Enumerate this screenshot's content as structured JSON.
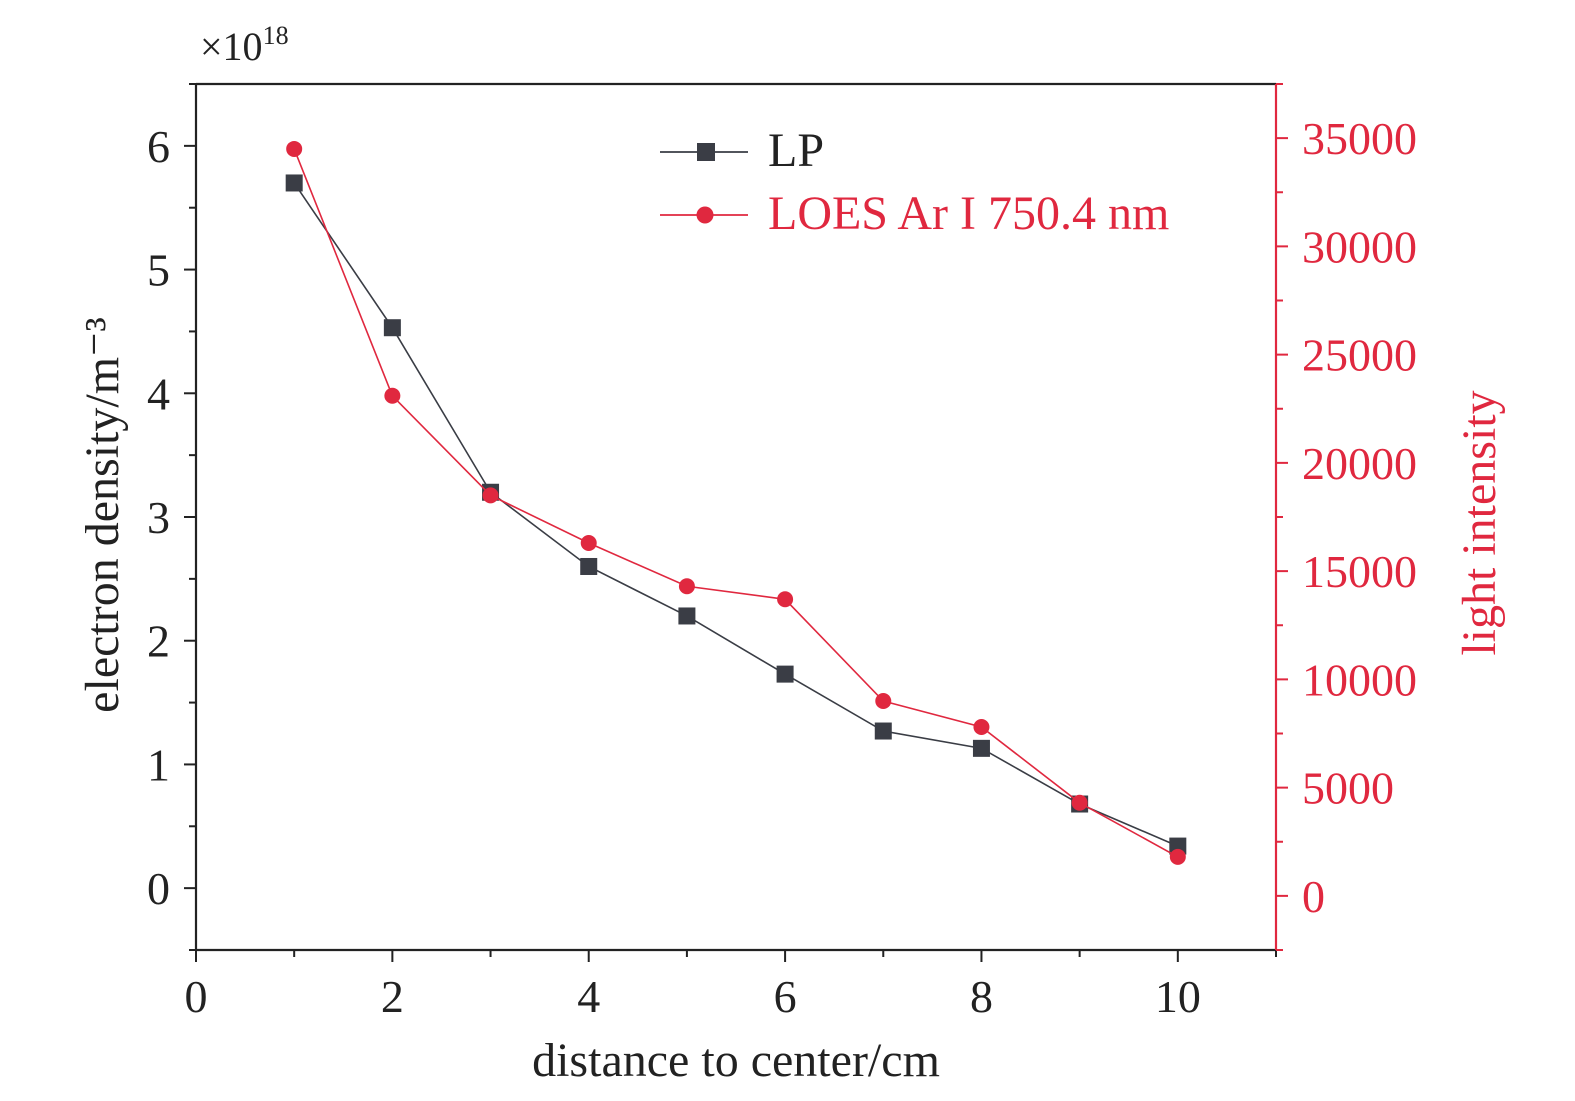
{
  "chart_data": {
    "type": "line",
    "x_axis": {
      "label": "distance to center/cm",
      "range": [
        0,
        11
      ],
      "ticks": [
        0,
        2,
        4,
        6,
        8,
        10
      ],
      "tick_labels": [
        "0",
        "2",
        "4",
        "6",
        "8",
        "10"
      ]
    },
    "y_axis_left": {
      "label": "electron density/m⁻³",
      "range": [
        -0.5,
        6.5
      ],
      "ticks": [
        0,
        1,
        2,
        3,
        4,
        5,
        6
      ],
      "tick_labels": [
        "0",
        "1",
        "2",
        "3",
        "4",
        "5",
        "6"
      ],
      "scale_label": "×10",
      "scale_exponent": "18",
      "color": "#222222"
    },
    "y_axis_right": {
      "label": "light intensity",
      "range": [
        -2500,
        37500
      ],
      "ticks": [
        0,
        5000,
        10000,
        15000,
        20000,
        25000,
        30000,
        35000
      ],
      "tick_labels": [
        "0",
        "5000",
        "10000",
        "15000",
        "20000",
        "25000",
        "30000",
        "35000"
      ],
      "color": "#e0283f"
    },
    "x": [
      1,
      2,
      3,
      4,
      5,
      6,
      7,
      8,
      9,
      10
    ],
    "series": [
      {
        "name": "LP",
        "axis": "left",
        "color": "#3a3d45",
        "marker": "square",
        "values": [
          5.7,
          4.53,
          3.2,
          2.6,
          2.2,
          1.73,
          1.27,
          1.13,
          0.68,
          0.34
        ]
      },
      {
        "name": "LOES Ar I 750.4 nm",
        "axis": "right",
        "color": "#e0283f",
        "marker": "circle",
        "values": [
          34500,
          23100,
          18500,
          16300,
          14300,
          13700,
          9000,
          7800,
          4300,
          1800
        ]
      }
    ],
    "legend": {
      "position": "top-right"
    },
    "grid": false
  }
}
